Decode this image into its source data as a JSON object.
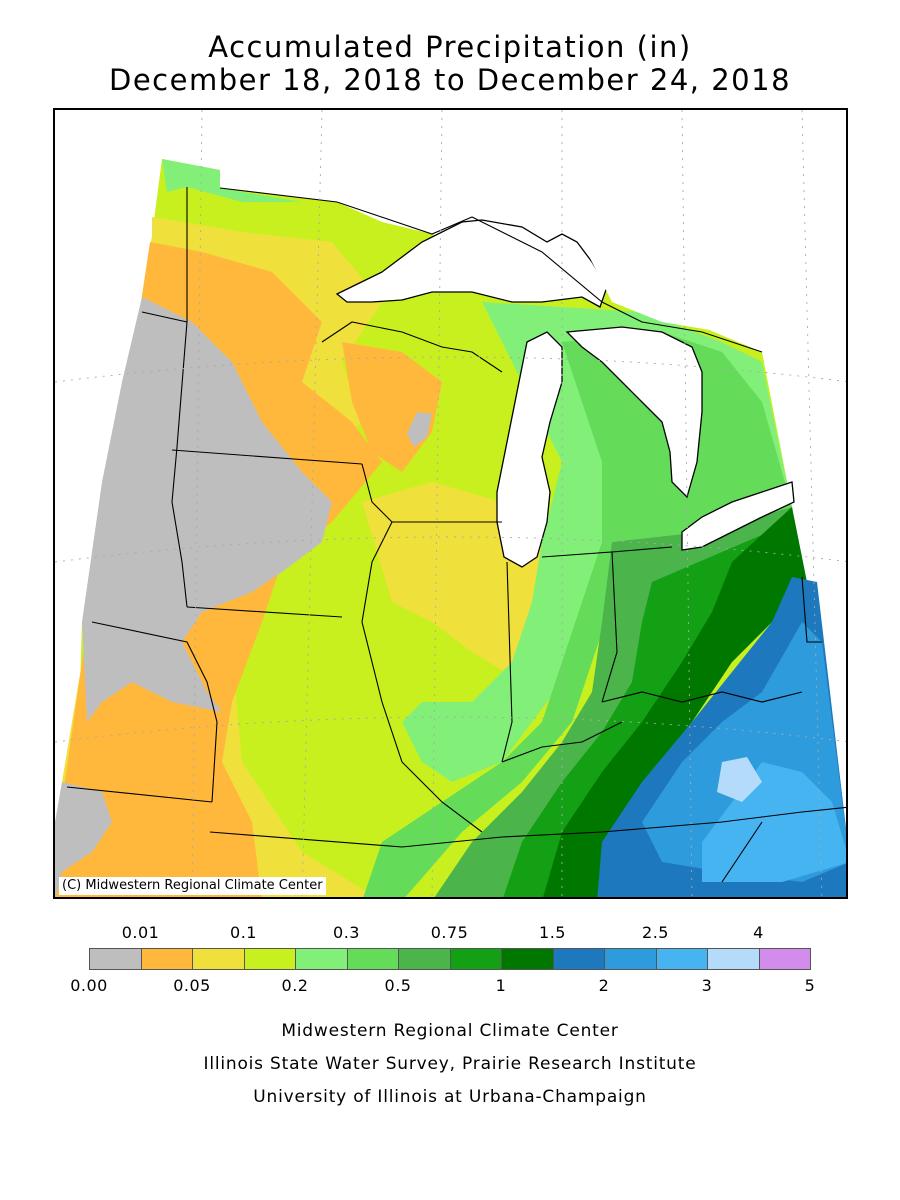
{
  "title": {
    "line1": "Accumulated Precipitation (in)",
    "line2": "December 18, 2018 to December 24, 2018"
  },
  "map": {
    "copyright": "(C) Midwestern Regional Climate Center",
    "region": "Midwest United States",
    "water_color": "#ffffff",
    "border_color": "#000000"
  },
  "legend": {
    "upper_labels": [
      "0.01",
      "0.1",
      "0.3",
      "0.75",
      "1.5",
      "2.5",
      "4"
    ],
    "lower_labels": [
      "0.00",
      "0.05",
      "0.2",
      "0.5",
      "1",
      "2",
      "3",
      "5"
    ],
    "colors": [
      "#bebebe",
      "#ffb83c",
      "#f0e03c",
      "#c8f01e",
      "#82f078",
      "#64dc5a",
      "#4bb44b",
      "#14a014",
      "#007800",
      "#1e78be",
      "#2d9bdc",
      "#46b4f0",
      "#b4dcfa",
      "#d28ceb"
    ]
  },
  "footer": {
    "line1": "Midwestern Regional Climate Center",
    "line2": "Illinois State Water Survey, Prairie Research Institute",
    "line3": "University of Illinois at Urbana-Champaign"
  }
}
